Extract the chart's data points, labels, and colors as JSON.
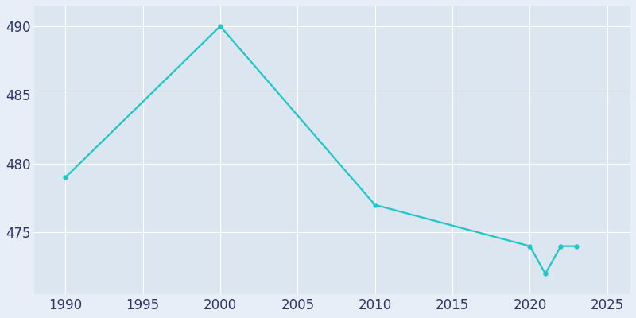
{
  "years": [
    1990,
    2000,
    2010,
    2020,
    2021,
    2022,
    2023
  ],
  "population": [
    479,
    490,
    477,
    474,
    472,
    474,
    474
  ],
  "line_color": "#20c5c5",
  "bg_color": "#e8eef7",
  "plot_bg_color": "#dce6f0",
  "grid_color": "#ffffff",
  "tick_color": "#2d3561",
  "xlim": [
    1988,
    2026.5
  ],
  "ylim": [
    470.5,
    491.5
  ],
  "xticks": [
    1990,
    1995,
    2000,
    2005,
    2010,
    2015,
    2020,
    2025
  ],
  "yticks": [
    475,
    480,
    485,
    490
  ],
  "figsize": [
    8.0,
    4.0
  ],
  "dpi": 100,
  "linewidth": 1.6,
  "markersize": 3.5,
  "tick_labelsize": 12
}
